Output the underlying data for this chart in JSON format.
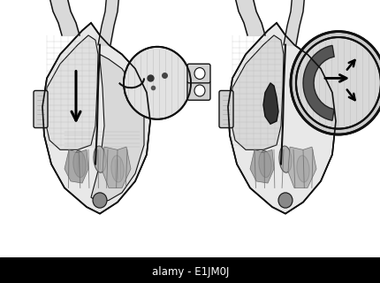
{
  "background_color": "#ffffff",
  "watermark_text": "alamy - E1JM0J",
  "watermark_bg": "#000000",
  "watermark_text_color": "#ffffff",
  "watermark_fontsize": 8.5,
  "fig_width": 4.31,
  "fig_height": 3.2,
  "dpi": 100,
  "line_color": "#111111",
  "fill_light": "#e8e8e8",
  "fill_mid": "#cccccc",
  "fill_dark": "#888888",
  "fill_darkest": "#444444"
}
